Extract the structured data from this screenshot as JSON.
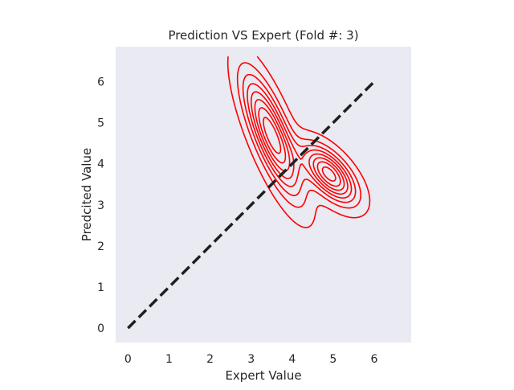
{
  "chart_data": {
    "type": "density-contour",
    "title": "Prediction VS Expert (Fold #: 3)",
    "xlabel": "Expert Value",
    "ylabel": "Predcited Value",
    "xlim": [
      -0.3,
      6.9
    ],
    "ylim": [
      -0.35,
      6.85
    ],
    "xticks": [
      "0",
      "1",
      "2",
      "3",
      "4",
      "5",
      "6"
    ],
    "yticks": [
      "0",
      "1",
      "2",
      "3",
      "4",
      "5",
      "6"
    ],
    "grid": false,
    "background": "#eaeaf2",
    "reference_line": {
      "style": "dashed",
      "color": "#1f1f1f",
      "x": [
        0,
        6
      ],
      "y": [
        0,
        6
      ]
    },
    "density": {
      "color": "#ff0000",
      "levels": 8,
      "modes": [
        {
          "x": 3.5,
          "y": 4.7,
          "sx": 0.45,
          "sy": 0.95,
          "corr": -0.78,
          "weight": 0.65
        },
        {
          "x": 4.9,
          "y": 3.75,
          "sx": 0.42,
          "sy": 0.45,
          "corr": -0.62,
          "weight": 0.35
        }
      ],
      "domain_x": [
        2.4,
        6.3
      ],
      "domain_y": [
        2.3,
        6.6
      ]
    }
  }
}
